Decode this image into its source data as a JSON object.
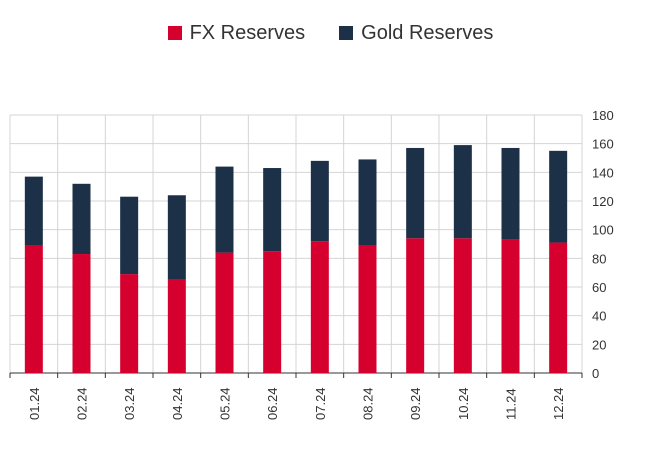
{
  "colors": {
    "fx": "#d6002e",
    "gold": "#1c3048",
    "grid": "#d4d4d4",
    "axis": "#333333"
  },
  "legend": {
    "fx_label": "FX Reserves",
    "gold_label": "Gold Reserves",
    "position": "top-center"
  },
  "chart_data": {
    "type": "bar",
    "stacked": true,
    "categories": [
      "01.24",
      "02.24",
      "03.24",
      "04.24",
      "05.24",
      "06.24",
      "07.24",
      "08.24",
      "09.24",
      "10.24",
      "11.24",
      "12.24"
    ],
    "series": [
      {
        "name": "FX Reserves",
        "values": [
          89,
          83,
          69,
          65,
          84,
          85,
          92,
          89,
          94,
          94,
          93,
          91
        ]
      },
      {
        "name": "Gold Reserves",
        "values": [
          48,
          49,
          54,
          59,
          60,
          58,
          56,
          60,
          63,
          65,
          64,
          64
        ]
      }
    ],
    "totals": [
      137,
      132,
      123,
      124,
      144,
      143,
      148,
      149,
      157,
      159,
      157,
      155
    ],
    "ylim": [
      0,
      180
    ],
    "yticks": [
      0,
      20,
      40,
      60,
      80,
      100,
      120,
      140,
      160,
      180
    ],
    "y_axis_side": "right",
    "grid": true,
    "title": "",
    "xlabel": "",
    "ylabel": ""
  }
}
